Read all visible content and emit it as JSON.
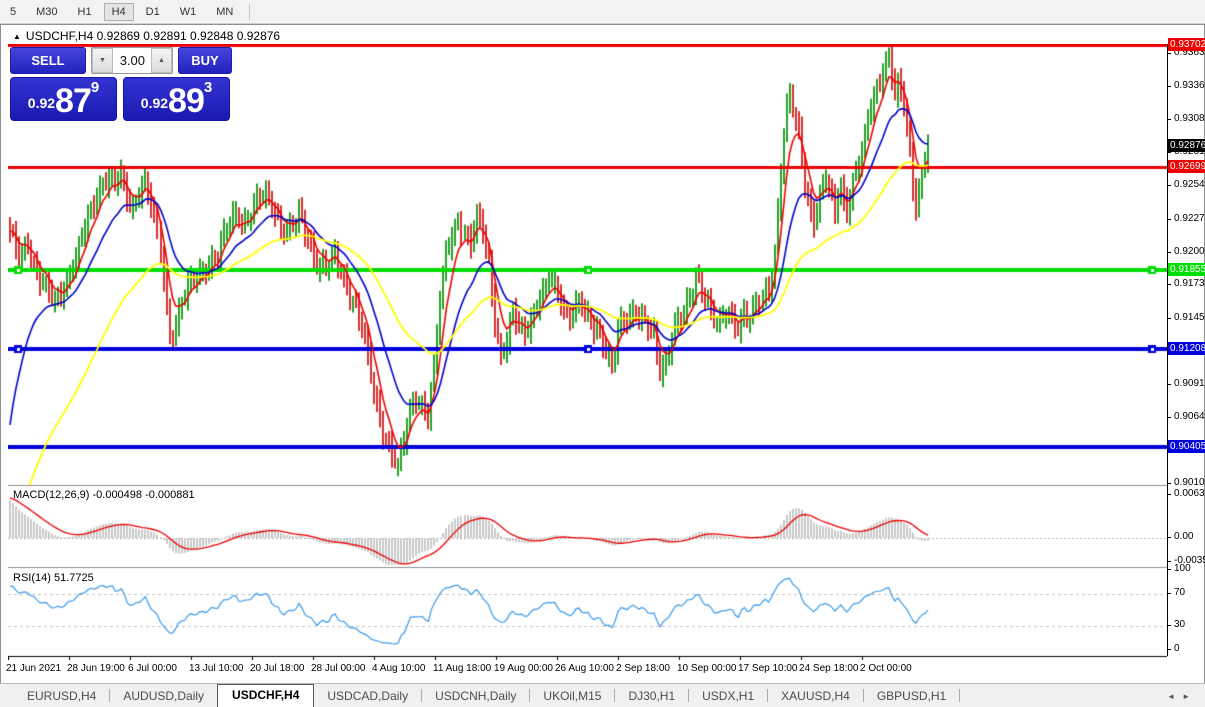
{
  "toolbar": {
    "timeframes": [
      {
        "label": "5",
        "active": false
      },
      {
        "label": "M30",
        "active": false
      },
      {
        "label": "H1",
        "active": false
      },
      {
        "label": "H4",
        "active": true
      },
      {
        "label": "D1",
        "active": false
      },
      {
        "label": "W1",
        "active": false
      },
      {
        "label": "MN",
        "active": false
      }
    ]
  },
  "chart_window": {
    "collapse_icon": "▲",
    "title": "USDCHF,H4  0.92869 0.92891 0.92848 0.92876"
  },
  "trade_panel": {
    "sell_label": "SELL",
    "buy_label": "BUY",
    "lot_value": "3.00",
    "down_arrow": "▼",
    "up_arrow": "▲",
    "sell_price_prefix": "0.92",
    "sell_price_big": "87",
    "sell_price_sup": "9",
    "buy_price_prefix": "0.92",
    "buy_price_big": "89",
    "buy_price_sup": "3"
  },
  "chart_data": {
    "type": "candlestick",
    "symbol": "USDCHF",
    "timeframe": "H4",
    "ohlc": {
      "open": 0.92869,
      "high": 0.92891,
      "low": 0.92848,
      "close": 0.92876
    },
    "price_range": {
      "top": 0.9371,
      "bottom": 0.90102
    },
    "price_ticks": [
      "0.93630",
      "0.93360",
      "0.93085",
      "0.92815",
      "0.92545",
      "0.92270",
      "0.92000",
      "0.91730",
      "0.91455",
      "0.91185",
      "0.90915",
      "0.90640",
      "0.90370",
      "0.90100"
    ],
    "x_tick_labels": [
      "21 Jun 2021",
      "28 Jun 19:00",
      "6 Jul 00:00",
      "13 Jul 10:00",
      "20 Jul 18:00",
      "28 Jul 00:00",
      "4 Aug 10:00",
      "11 Aug 18:00",
      "19 Aug 00:00",
      "26 Aug 10:00",
      "2 Sep 18:00",
      "10 Sep 00:00",
      "17 Sep 10:00",
      "24 Sep 18:00",
      "2 Oct 00:00"
    ],
    "candle_count": 306,
    "candle_colors": {
      "up": "#28a028",
      "down": "#d83030"
    },
    "price_waypoints": [
      [
        0,
        0.9215
      ],
      [
        3,
        0.9198
      ],
      [
        6,
        0.9208
      ],
      [
        9,
        0.9182
      ],
      [
        12,
        0.917
      ],
      [
        15,
        0.916
      ],
      [
        18,
        0.9172
      ],
      [
        22,
        0.9195
      ],
      [
        26,
        0.9228
      ],
      [
        30,
        0.9255
      ],
      [
        33,
        0.9262
      ],
      [
        35,
        0.9255
      ],
      [
        37,
        0.9263
      ],
      [
        39,
        0.9245
      ],
      [
        41,
        0.9238
      ],
      [
        43,
        0.9252
      ],
      [
        45,
        0.9258
      ],
      [
        47,
        0.9238
      ],
      [
        49,
        0.9215
      ],
      [
        51,
        0.918
      ],
      [
        53,
        0.913
      ],
      [
        55,
        0.9142
      ],
      [
        57,
        0.916
      ],
      [
        60,
        0.9175
      ],
      [
        63,
        0.9182
      ],
      [
        66,
        0.9192
      ],
      [
        69,
        0.9198
      ],
      [
        72,
        0.922
      ],
      [
        75,
        0.9232
      ],
      [
        78,
        0.9225
      ],
      [
        81,
        0.9238
      ],
      [
        84,
        0.9247
      ],
      [
        87,
        0.924
      ],
      [
        90,
        0.9222
      ],
      [
        93,
        0.9218
      ],
      [
        96,
        0.923
      ],
      [
        99,
        0.9212
      ],
      [
        102,
        0.9192
      ],
      [
        105,
        0.9188
      ],
      [
        108,
        0.9196
      ],
      [
        111,
        0.9178
      ],
      [
        114,
        0.9162
      ],
      [
        117,
        0.914
      ],
      [
        119,
        0.9112
      ],
      [
        121,
        0.9085
      ],
      [
        123,
        0.9062
      ],
      [
        125,
        0.9048
      ],
      [
        127,
        0.9036
      ],
      [
        129,
        0.9024
      ],
      [
        131,
        0.9045
      ],
      [
        133,
        0.907
      ],
      [
        135,
        0.9082
      ],
      [
        137,
        0.9075
      ],
      [
        139,
        0.9068
      ],
      [
        141,
        0.9105
      ],
      [
        143,
        0.916
      ],
      [
        145,
        0.92
      ],
      [
        147,
        0.9215
      ],
      [
        149,
        0.9228
      ],
      [
        151,
        0.9215
      ],
      [
        153,
        0.9206
      ],
      [
        155,
        0.9228
      ],
      [
        157,
        0.9218
      ],
      [
        159,
        0.9192
      ],
      [
        161,
        0.9145
      ],
      [
        163,
        0.9115
      ],
      [
        165,
        0.9126
      ],
      [
        167,
        0.915
      ],
      [
        169,
        0.914
      ],
      [
        171,
        0.9136
      ],
      [
        173,
        0.9146
      ],
      [
        175,
        0.9158
      ],
      [
        177,
        0.9165
      ],
      [
        179,
        0.9178
      ],
      [
        181,
        0.9172
      ],
      [
        183,
        0.9162
      ],
      [
        185,
        0.9148
      ],
      [
        187,
        0.9152
      ],
      [
        189,
        0.9158
      ],
      [
        191,
        0.915
      ],
      [
        193,
        0.9142
      ],
      [
        196,
        0.9136
      ],
      [
        198,
        0.912
      ],
      [
        200,
        0.9105
      ],
      [
        202,
        0.9135
      ],
      [
        204,
        0.9144
      ],
      [
        206,
        0.9148
      ],
      [
        208,
        0.9154
      ],
      [
        210,
        0.9146
      ],
      [
        212,
        0.914
      ],
      [
        214,
        0.913
      ],
      [
        216,
        0.9102
      ],
      [
        218,
        0.911
      ],
      [
        220,
        0.9135
      ],
      [
        222,
        0.9145
      ],
      [
        224,
        0.915
      ],
      [
        226,
        0.916
      ],
      [
        228,
        0.9178
      ],
      [
        230,
        0.9172
      ],
      [
        232,
        0.916
      ],
      [
        234,
        0.9148
      ],
      [
        236,
        0.914
      ],
      [
        238,
        0.915
      ],
      [
        240,
        0.9144
      ],
      [
        242,
        0.914
      ],
      [
        244,
        0.9152
      ],
      [
        246,
        0.9148
      ],
      [
        248,
        0.9156
      ],
      [
        250,
        0.9162
      ],
      [
        252,
        0.9168
      ],
      [
        254,
        0.92
      ],
      [
        255,
        0.9235
      ],
      [
        256,
        0.927
      ],
      [
        257,
        0.93
      ],
      [
        258,
        0.932
      ],
      [
        259,
        0.9328
      ],
      [
        260,
        0.9318
      ],
      [
        261,
        0.9305
      ],
      [
        262,
        0.9295
      ],
      [
        263,
        0.9275
      ],
      [
        264,
        0.9258
      ],
      [
        265,
        0.9242
      ],
      [
        266,
        0.9232
      ],
      [
        267,
        0.9228
      ],
      [
        268,
        0.9238
      ],
      [
        269,
        0.9248
      ],
      [
        270,
        0.9255
      ],
      [
        271,
        0.9262
      ],
      [
        272,
        0.9252
      ],
      [
        273,
        0.924
      ],
      [
        274,
        0.9232
      ],
      [
        275,
        0.9246
      ],
      [
        276,
        0.9254
      ],
      [
        277,
        0.9242
      ],
      [
        278,
        0.9236
      ],
      [
        279,
        0.9248
      ],
      [
        280,
        0.926
      ],
      [
        281,
        0.9268
      ],
      [
        282,
        0.9274
      ],
      [
        283,
        0.9282
      ],
      [
        284,
        0.9295
      ],
      [
        285,
        0.9308
      ],
      [
        286,
        0.9318
      ],
      [
        287,
        0.9326
      ],
      [
        288,
        0.9334
      ],
      [
        289,
        0.9342
      ],
      [
        290,
        0.935
      ],
      [
        291,
        0.9358
      ],
      [
        292,
        0.9363
      ],
      [
        293,
        0.9348
      ],
      [
        294,
        0.9328
      ],
      [
        295,
        0.9338
      ],
      [
        296,
        0.933
      ],
      [
        297,
        0.932
      ],
      [
        298,
        0.93
      ],
      [
        299,
        0.9278
      ],
      [
        300,
        0.9255
      ],
      [
        301,
        0.9238
      ],
      [
        302,
        0.9252
      ],
      [
        303,
        0.9268
      ],
      [
        304,
        0.928
      ],
      [
        305,
        0.9288
      ]
    ],
    "moving_averages": [
      {
        "period": 6,
        "color": "#ee0000",
        "seed": null,
        "width": 1.6
      },
      {
        "period": 18,
        "color": "#0000cc",
        "seed": 0.904,
        "width": 1.6
      },
      {
        "period": 50,
        "color": "#ffff00",
        "seed": 0.894,
        "width": 1.8
      }
    ],
    "hlines": [
      {
        "price": 0.93702,
        "label": "0.93702",
        "color": "#ee0000",
        "thickness": 3,
        "selected": false
      },
      {
        "price": 0.92699,
        "label": "0.92699",
        "color": "#ee0000",
        "thickness": 3,
        "selected": false
      },
      {
        "price": 0.91855,
        "label": "0.91855",
        "color": "#00dd00",
        "thickness": 4,
        "selected": true
      },
      {
        "price": 0.91208,
        "label": "0.91208",
        "color": "#0000dd",
        "thickness": 4,
        "selected": true
      },
      {
        "price": 0.90405,
        "label": "0.90405",
        "color": "#0000dd",
        "thickness": 4,
        "selected": false
      }
    ],
    "current_price": {
      "value": 0.92876,
      "label": "0.92876",
      "bg": "#000000"
    },
    "macd": {
      "name_label": "MACD(12,26,9)",
      "values_label": "-0.000498 -0.000881",
      "params": {
        "fast": 12,
        "slow": 26,
        "signal": 9
      },
      "ticks": [
        "0.00636",
        "0.00",
        "-0.00350"
      ],
      "tick_values": [
        0.00636,
        0,
        -0.0035
      ],
      "hist_color": "#c9c9c9",
      "signal_color": "#ee0000"
    },
    "rsi": {
      "name_label": "RSI(14)",
      "value_label": "51.7725",
      "period": 14,
      "ticks": [
        "100",
        "70",
        "30",
        "0"
      ],
      "tick_values": [
        100,
        70,
        30,
        0
      ],
      "levels": [
        70,
        30
      ],
      "color": "#3a99e8"
    }
  },
  "tab_bar": {
    "tabs": [
      {
        "label": "EURUSD,H4",
        "active": false
      },
      {
        "label": "AUDUSD,Daily",
        "active": false
      },
      {
        "label": "USDCHF,H4",
        "active": true
      },
      {
        "label": "USDCAD,Daily",
        "active": false
      },
      {
        "label": "USDCNH,Daily",
        "active": false
      },
      {
        "label": "UKOil,M15",
        "active": false
      },
      {
        "label": "DJ30,H1",
        "active": false
      },
      {
        "label": "USDX,H1",
        "active": false
      },
      {
        "label": "XAUUSD,H4",
        "active": false
      },
      {
        "label": "GBPUSD,H1",
        "active": false
      }
    ],
    "scroll_left": "◄",
    "scroll_right": "►"
  }
}
